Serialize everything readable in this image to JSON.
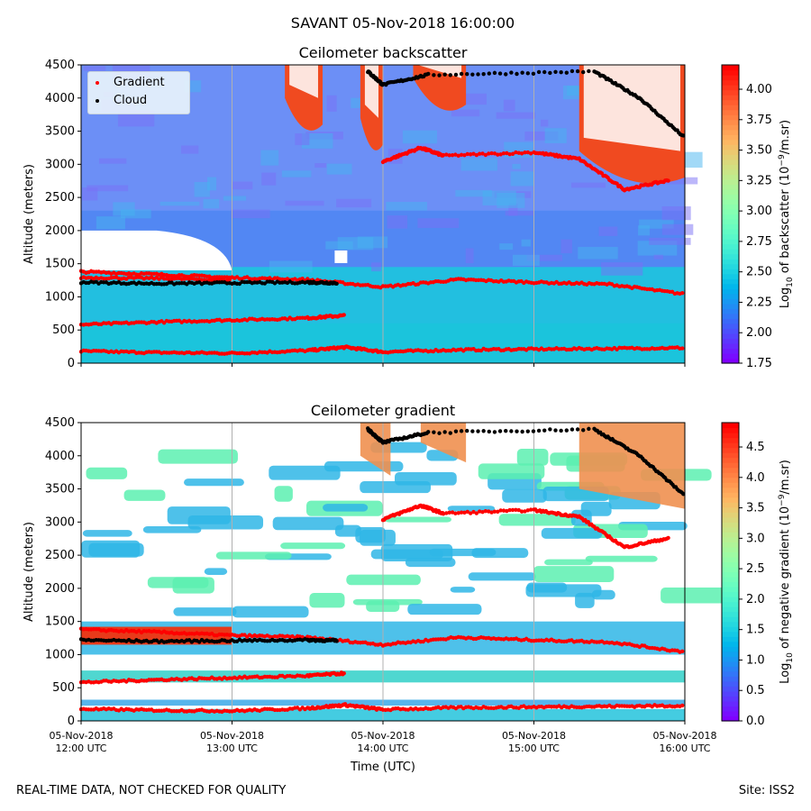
{
  "figure": {
    "suptitle": "SAVANT 05-Nov-2018 16:00:00",
    "footer_left": "REAL-TIME DATA, NOT CHECKED FOR QUALITY",
    "footer_right": "Site: ISS2"
  },
  "legend": {
    "items": [
      {
        "label": "Gradient",
        "color": "#ff0000"
      },
      {
        "label": "Cloud",
        "color": "#000000"
      }
    ]
  },
  "chart_data": [
    {
      "type": "heatmap",
      "title": "Ceilometer backscatter",
      "xlabel": "",
      "ylabel": "Altitude (meters)",
      "x_ticks": [
        "05-Nov-2018\n12:00 UTC",
        "05-Nov-2018\n13:00 UTC",
        "05-Nov-2018\n14:00 UTC",
        "05-Nov-2018\n15:00 UTC",
        "05-Nov-2018\n16:00 UTC"
      ],
      "x_tick_labels_shown": false,
      "xlim": [
        "12:00",
        "16:00"
      ],
      "ylim": [
        0,
        4500
      ],
      "y_ticks": [
        0,
        500,
        1000,
        1500,
        2000,
        2500,
        3000,
        3500,
        4000,
        4500
      ],
      "grid": "vertical lines at hour ticks",
      "colorbar": {
        "label": "Log10 of backscatter (10⁻⁹/m.sr)",
        "label_main": "Log",
        "label_sub": "10",
        "label_rest": " of backscatter (10",
        "label_sup": "−9",
        "label_tail": "/m.sr)",
        "range": [
          1.75,
          4.2
        ],
        "ticks": [
          "1.75",
          "2.00",
          "2.25",
          "2.50",
          "2.75",
          "3.00",
          "3.25",
          "3.50",
          "3.75",
          "4.00"
        ],
        "colormap": "rainbow"
      },
      "legend": "top-left",
      "series": [
        {
          "name": "Gradient",
          "layers": [
            {
              "x": [
                12.0,
                12.5,
                13.0,
                13.5,
                13.75,
                14.0,
                14.5,
                15.0,
                15.5,
                16.0
              ],
              "y": [
                180,
                160,
                150,
                190,
                240,
                170,
                200,
                210,
                220,
                230
              ]
            },
            {
              "x": [
                12.0,
                12.5,
                13.0,
                13.5,
                13.75
              ],
              "y": [
                580,
                620,
                650,
                680,
                720
              ]
            },
            {
              "x": [
                12.0,
                12.5,
                13.0,
                13.5,
                14.0,
                14.5,
                15.0,
                15.5,
                16.0
              ],
              "y": [
                1380,
                1340,
                1290,
                1260,
                1150,
                1260,
                1220,
                1190,
                1040
              ]
            },
            {
              "x": [
                12.0,
                12.5,
                13.0
              ],
              "y": [
                1290,
                1280,
                1250
              ]
            },
            {
              "x": [
                14.0,
                14.25,
                14.4,
                15.0,
                15.3,
                15.6,
                15.9
              ],
              "y": [
                3040,
                3250,
                3130,
                3180,
                3080,
                2620,
                2760
              ]
            }
          ]
        },
        {
          "name": "Cloud",
          "layers": [
            {
              "x": [
                12.0,
                12.5,
                13.0,
                13.5,
                13.7
              ],
              "y": [
                1220,
                1200,
                1210,
                1220,
                1210
              ]
            },
            {
              "x": [
                13.9,
                14.0,
                14.3,
                15.4,
                15.7,
                16.0
              ],
              "y": [
                4400,
                4200,
                4350,
                4400,
                4000,
                3400
              ]
            }
          ]
        }
      ]
    },
    {
      "type": "heatmap",
      "title": "Ceilometer gradient",
      "xlabel": "Time (UTC)",
      "ylabel": "Altitude (meters)",
      "x_ticks": [
        "05-Nov-2018\n12:00 UTC",
        "05-Nov-2018\n13:00 UTC",
        "05-Nov-2018\n14:00 UTC",
        "05-Nov-2018\n15:00 UTC",
        "05-Nov-2018\n16:00 UTC"
      ],
      "x_tick_labels_shown": true,
      "xlim": [
        "12:00",
        "16:00"
      ],
      "ylim": [
        0,
        4500
      ],
      "y_ticks": [
        0,
        500,
        1000,
        1500,
        2000,
        2500,
        3000,
        3500,
        4000,
        4500
      ],
      "grid": "vertical lines at hour ticks",
      "colorbar": {
        "label": "Log10 of negative gradient (10⁻⁹/m.sr)",
        "label_main": "Log",
        "label_sub": "10",
        "label_rest": " of negative gradient (10",
        "label_sup": "−9",
        "label_tail": "/m.sr)",
        "range": [
          0.0,
          4.9
        ],
        "ticks": [
          "0.0",
          "0.5",
          "1.0",
          "1.5",
          "2.0",
          "2.5",
          "3.0",
          "3.5",
          "4.0",
          "4.5"
        ],
        "colormap": "rainbow"
      },
      "series": [
        {
          "name": "Gradient",
          "layers": [
            {
              "x": [
                12.0,
                12.5,
                13.0,
                13.5,
                13.75,
                14.0,
                14.5,
                15.0,
                15.5,
                16.0
              ],
              "y": [
                180,
                160,
                150,
                190,
                240,
                170,
                200,
                210,
                220,
                230
              ]
            },
            {
              "x": [
                12.0,
                12.5,
                13.0,
                13.5,
                13.75
              ],
              "y": [
                580,
                620,
                650,
                680,
                720
              ]
            },
            {
              "x": [
                12.0,
                12.5,
                13.0,
                13.5,
                14.0,
                14.5,
                15.0,
                15.5,
                16.0
              ],
              "y": [
                1380,
                1340,
                1290,
                1260,
                1150,
                1260,
                1220,
                1190,
                1040
              ]
            },
            {
              "x": [
                14.0,
                14.25,
                14.4,
                15.0,
                15.3,
                15.6,
                15.9
              ],
              "y": [
                3040,
                3250,
                3130,
                3180,
                3080,
                2620,
                2760
              ]
            }
          ]
        },
        {
          "name": "Cloud",
          "layers": [
            {
              "x": [
                12.0,
                12.5,
                13.0,
                13.5,
                13.7
              ],
              "y": [
                1220,
                1200,
                1210,
                1220,
                1210
              ]
            },
            {
              "x": [
                13.9,
                14.0,
                14.3,
                15.4,
                15.7,
                16.0
              ],
              "y": [
                4400,
                4200,
                4350,
                4400,
                4000,
                3400
              ]
            }
          ]
        }
      ]
    }
  ]
}
